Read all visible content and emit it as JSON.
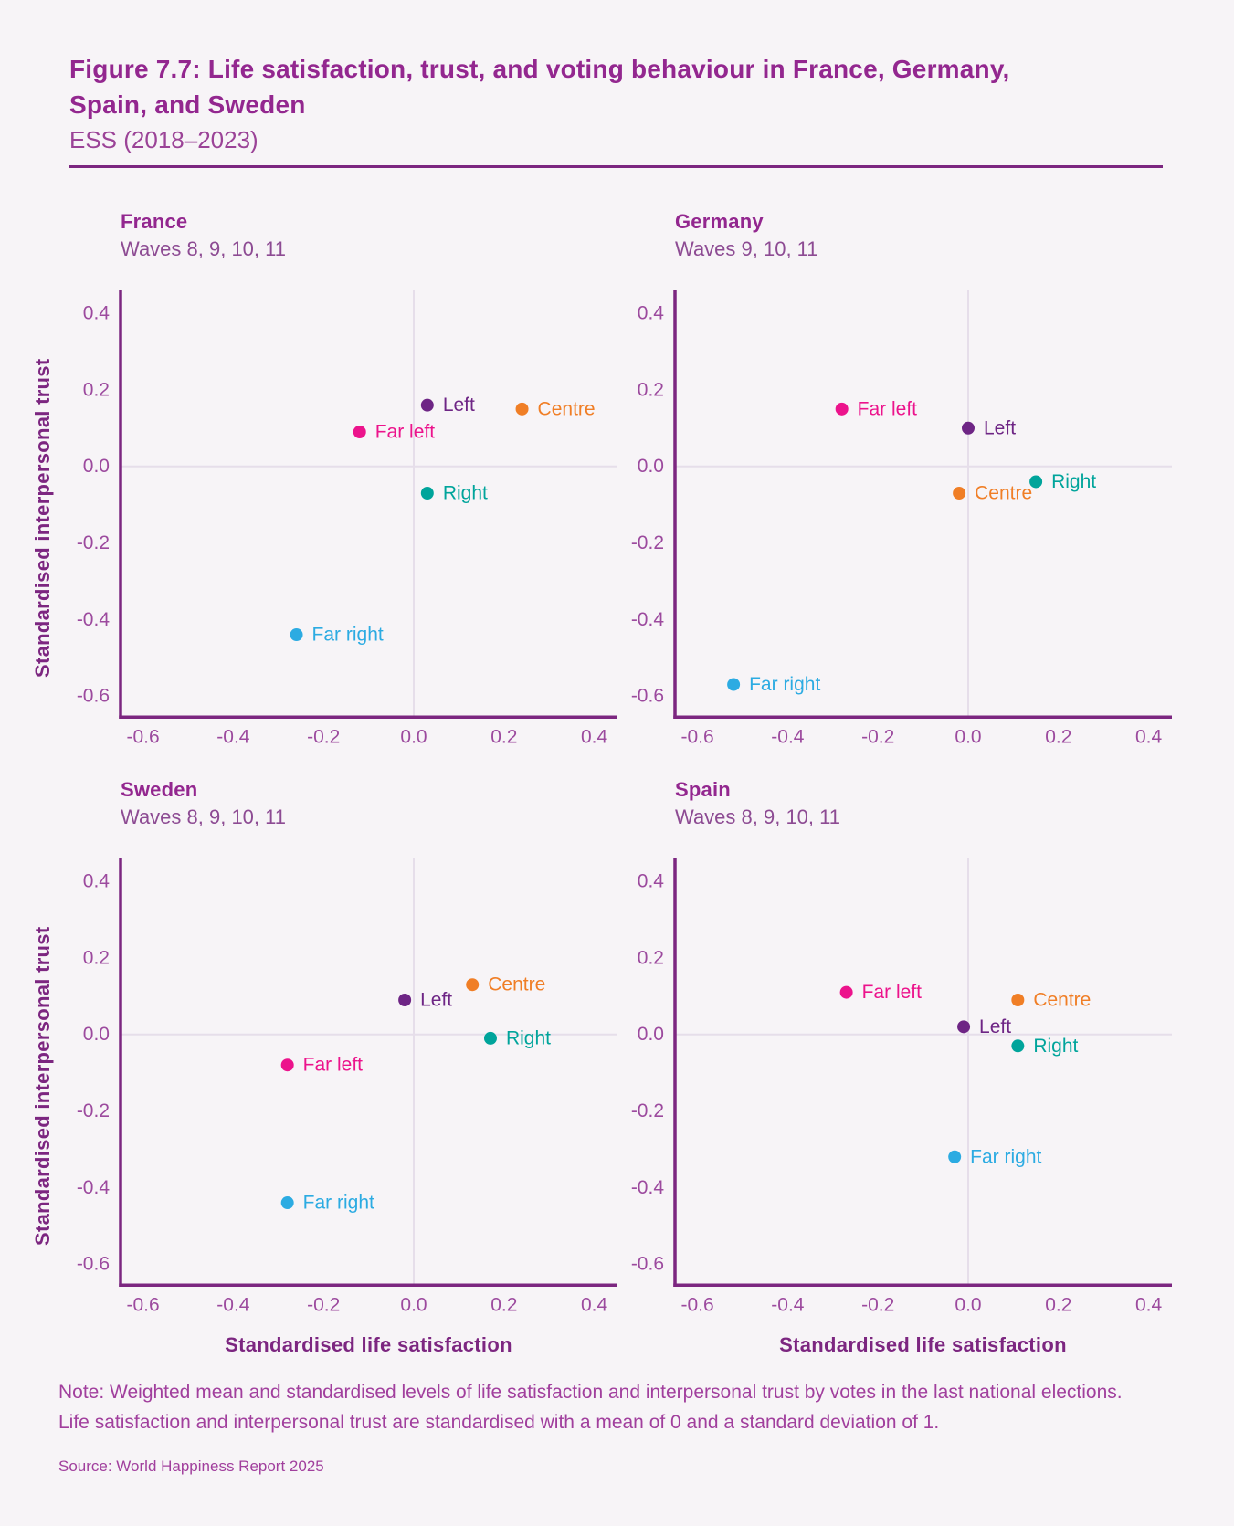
{
  "figure": {
    "title_line1": "Figure 7.7: Life satisfaction, trust, and voting behaviour in France, Germany,",
    "title_line2": "Spain, and Sweden",
    "dataset_subtitle": "ESS (2018–2023)"
  },
  "axes": {
    "x_label": "Standardised life satisfaction",
    "y_label": "Standardised interpersonal trust",
    "x_ticks": [
      "-0.6",
      "-0.4",
      "-0.2",
      "0.0",
      "0.2",
      "0.4"
    ],
    "y_ticks": [
      "0.4",
      "0.2",
      "0.0",
      "-0.2",
      "-0.4",
      "-0.6"
    ],
    "x_range": [
      -0.65,
      0.45
    ],
    "y_range": [
      -0.655,
      0.46
    ],
    "grid_zero_lines": true
  },
  "colors": {
    "background": "#F7F4F7",
    "title_purple": "#93278F",
    "subtitle_purple": "#8D4B93",
    "axis_spine": "#7C2680",
    "tick_label": "#9C4A9E",
    "gridline": "#E6DEEA",
    "note_purple": "#A13F9D",
    "far_left": "#EC138C",
    "left": "#6E2585",
    "centre": "#F07E26",
    "right": "#00A49B",
    "far_right": "#2CABE2"
  },
  "chart_data": [
    {
      "type": "scatter",
      "title": "France",
      "subtitle": "Waves 8, 9, 10, 11",
      "xlabel": "Standardised life satisfaction",
      "ylabel": "Standardised interpersonal trust",
      "xlim": [
        -0.65,
        0.45
      ],
      "ylim": [
        -0.655,
        0.46
      ],
      "points": [
        {
          "label": "Far left",
          "color_key": "far_left",
          "x": -0.12,
          "y": 0.09
        },
        {
          "label": "Left",
          "color_key": "left",
          "x": 0.03,
          "y": 0.16
        },
        {
          "label": "Centre",
          "color_key": "centre",
          "x": 0.24,
          "y": 0.15
        },
        {
          "label": "Right",
          "color_key": "right",
          "x": 0.03,
          "y": -0.07
        },
        {
          "label": "Far right",
          "color_key": "far_right",
          "x": -0.26,
          "y": -0.44
        }
      ]
    },
    {
      "type": "scatter",
      "title": "Germany",
      "subtitle": "Waves 9, 10, 11",
      "xlabel": "Standardised life satisfaction",
      "ylabel": "Standardised interpersonal trust",
      "xlim": [
        -0.65,
        0.45
      ],
      "ylim": [
        -0.655,
        0.46
      ],
      "points": [
        {
          "label": "Far left",
          "color_key": "far_left",
          "x": -0.28,
          "y": 0.15
        },
        {
          "label": "Left",
          "color_key": "left",
          "x": 0.0,
          "y": 0.1
        },
        {
          "label": "Centre",
          "color_key": "centre",
          "x": -0.02,
          "y": -0.07
        },
        {
          "label": "Right",
          "color_key": "right",
          "x": 0.15,
          "y": -0.04
        },
        {
          "label": "Far right",
          "color_key": "far_right",
          "x": -0.52,
          "y": -0.57
        }
      ]
    },
    {
      "type": "scatter",
      "title": "Sweden",
      "subtitle": "Waves 8, 9, 10, 11",
      "xlabel": "Standardised life satisfaction",
      "ylabel": "Standardised interpersonal trust",
      "xlim": [
        -0.65,
        0.45
      ],
      "ylim": [
        -0.655,
        0.46
      ],
      "points": [
        {
          "label": "Far left",
          "color_key": "far_left",
          "x": -0.28,
          "y": -0.08
        },
        {
          "label": "Left",
          "color_key": "left",
          "x": -0.02,
          "y": 0.09
        },
        {
          "label": "Centre",
          "color_key": "centre",
          "x": 0.13,
          "y": 0.13
        },
        {
          "label": "Right",
          "color_key": "right",
          "x": 0.17,
          "y": -0.01
        },
        {
          "label": "Far right",
          "color_key": "far_right",
          "x": -0.28,
          "y": -0.44
        }
      ]
    },
    {
      "type": "scatter",
      "title": "Spain",
      "subtitle": "Waves 8, 9, 10, 11",
      "xlabel": "Standardised life satisfaction",
      "ylabel": "Standardised interpersonal trust",
      "xlim": [
        -0.65,
        0.45
      ],
      "ylim": [
        -0.655,
        0.46
      ],
      "points": [
        {
          "label": "Far left",
          "color_key": "far_left",
          "x": -0.27,
          "y": 0.11
        },
        {
          "label": "Left",
          "color_key": "left",
          "x": -0.01,
          "y": 0.02
        },
        {
          "label": "Centre",
          "color_key": "centre",
          "x": 0.11,
          "y": 0.09
        },
        {
          "label": "Right",
          "color_key": "right",
          "x": 0.11,
          "y": -0.03
        },
        {
          "label": "Far right",
          "color_key": "far_right",
          "x": -0.03,
          "y": -0.32
        }
      ]
    }
  ],
  "note": "Note: Weighted mean and standardised levels of life satisfaction and interpersonal trust by votes in the last national elections. Life satisfaction and interpersonal trust are standardised with a mean of 0 and a standard deviation of 1.",
  "source": "Source: World Happiness Report 2025"
}
